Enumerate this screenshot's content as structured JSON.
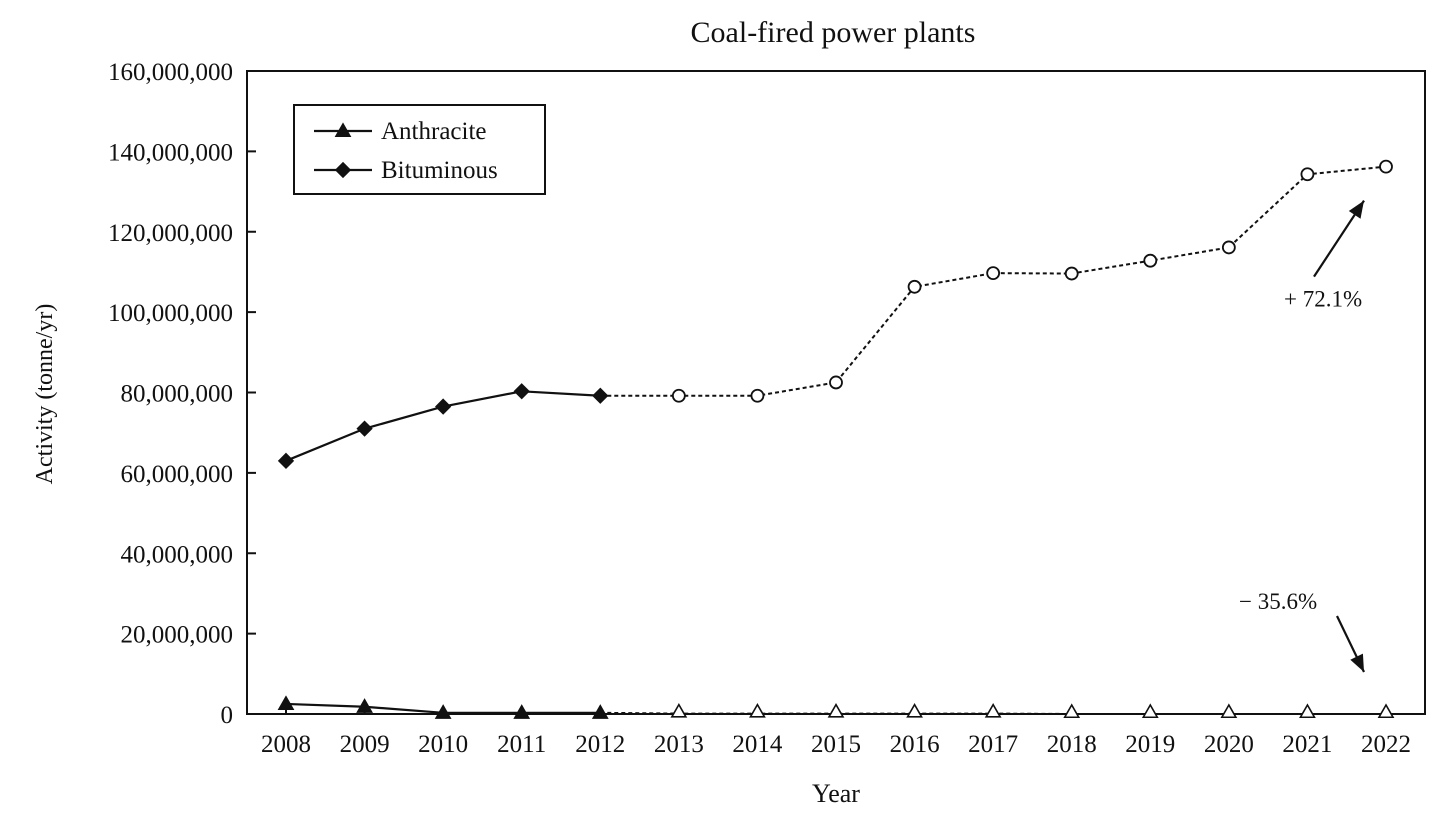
{
  "chart_data": {
    "type": "line",
    "title": "Coal-fired power plants",
    "xlabel": "Year",
    "ylabel": "Activity (tonne/yr)",
    "ylim": [
      0,
      160000000
    ],
    "y_ticks": [
      0,
      20000000,
      40000000,
      60000000,
      80000000,
      100000000,
      120000000,
      140000000,
      160000000
    ],
    "y_tick_labels": [
      "0",
      "20,000,000",
      "40,000,000",
      "60,000,000",
      "80,000,000",
      "100,000,000",
      "120,000,000",
      "140,000,000",
      "160,000,000"
    ],
    "categories": [
      "2008",
      "2009",
      "2010",
      "2011",
      "2012",
      "2013",
      "2014",
      "2015",
      "2016",
      "2017",
      "2018",
      "2019",
      "2020",
      "2021",
      "2022"
    ],
    "observed_last_year": "2012",
    "projected_style": "dashed line with open markers from 2012 onward",
    "grid": false,
    "legend_position": "top-left",
    "series": [
      {
        "name": "Anthracite",
        "marker": "triangle",
        "values": [
          2500000,
          1800000,
          300000,
          300000,
          300000,
          100000,
          100000,
          100000,
          100000,
          100000,
          0,
          0,
          0,
          0,
          0
        ]
      },
      {
        "name": "Bituminous",
        "marker": "diamond",
        "values": [
          63000000,
          71000000,
          76500000,
          80300000,
          79200000,
          79200000,
          79200000,
          82500000,
          106300000,
          109700000,
          109600000,
          112800000,
          116100000,
          134300000,
          136200000
        ]
      }
    ],
    "annotations": [
      {
        "text": "+ 72.1%",
        "series": "Bituminous",
        "arrow": "up"
      },
      {
        "text": "− 35.6%",
        "series": "Anthracite",
        "arrow": "down"
      }
    ]
  }
}
